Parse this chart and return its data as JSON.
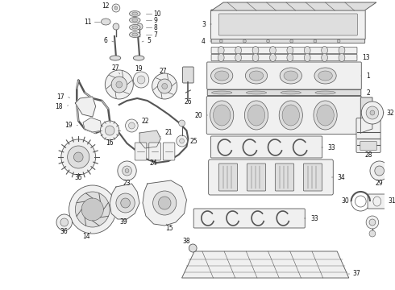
{
  "bg_color": "#ffffff",
  "fig_width": 4.9,
  "fig_height": 3.6,
  "dpi": 100,
  "line_color": "#555555",
  "label_color": "#111111",
  "label_fs": 5.5,
  "lw": 0.6,
  "fc_light": "#f0f0f0",
  "fc_mid": "#dedede",
  "fc_dark": "#c8c8c8"
}
